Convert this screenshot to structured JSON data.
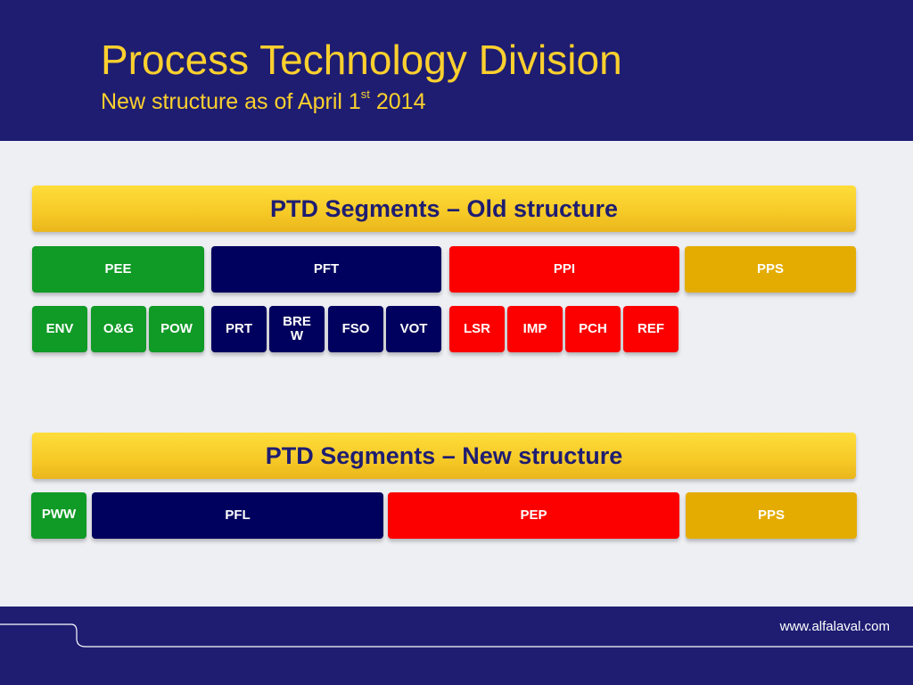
{
  "header": {
    "title": "Process Technology Division",
    "subtitle_prefix": "New structure as of April 1",
    "subtitle_sup": "st",
    "subtitle_suffix": " 2014"
  },
  "old_structure": {
    "banner": "PTD Segments – Old structure",
    "segments": [
      "PEE",
      "PFT",
      "PPI",
      "PPS"
    ],
    "subsegments": [
      "ENV",
      "O&G",
      "POW",
      "PRT",
      "BRE\nW",
      "FSO",
      "VOT",
      "LSR",
      "IMP",
      "PCH",
      "REF"
    ]
  },
  "new_structure": {
    "banner": "PTD Segments – New structure",
    "segments": [
      "PWW",
      "PFL",
      "PEP",
      "PPS"
    ]
  },
  "footer": {
    "url": "www.alfalaval.com"
  },
  "colors": {
    "header_background": "#1e1d72",
    "title_text": "#fcd02e",
    "banner_yellow": "#f6c926",
    "green": "#109a26",
    "navy": "#00005e",
    "red": "#fc0000",
    "gold": "#e4ac00"
  }
}
